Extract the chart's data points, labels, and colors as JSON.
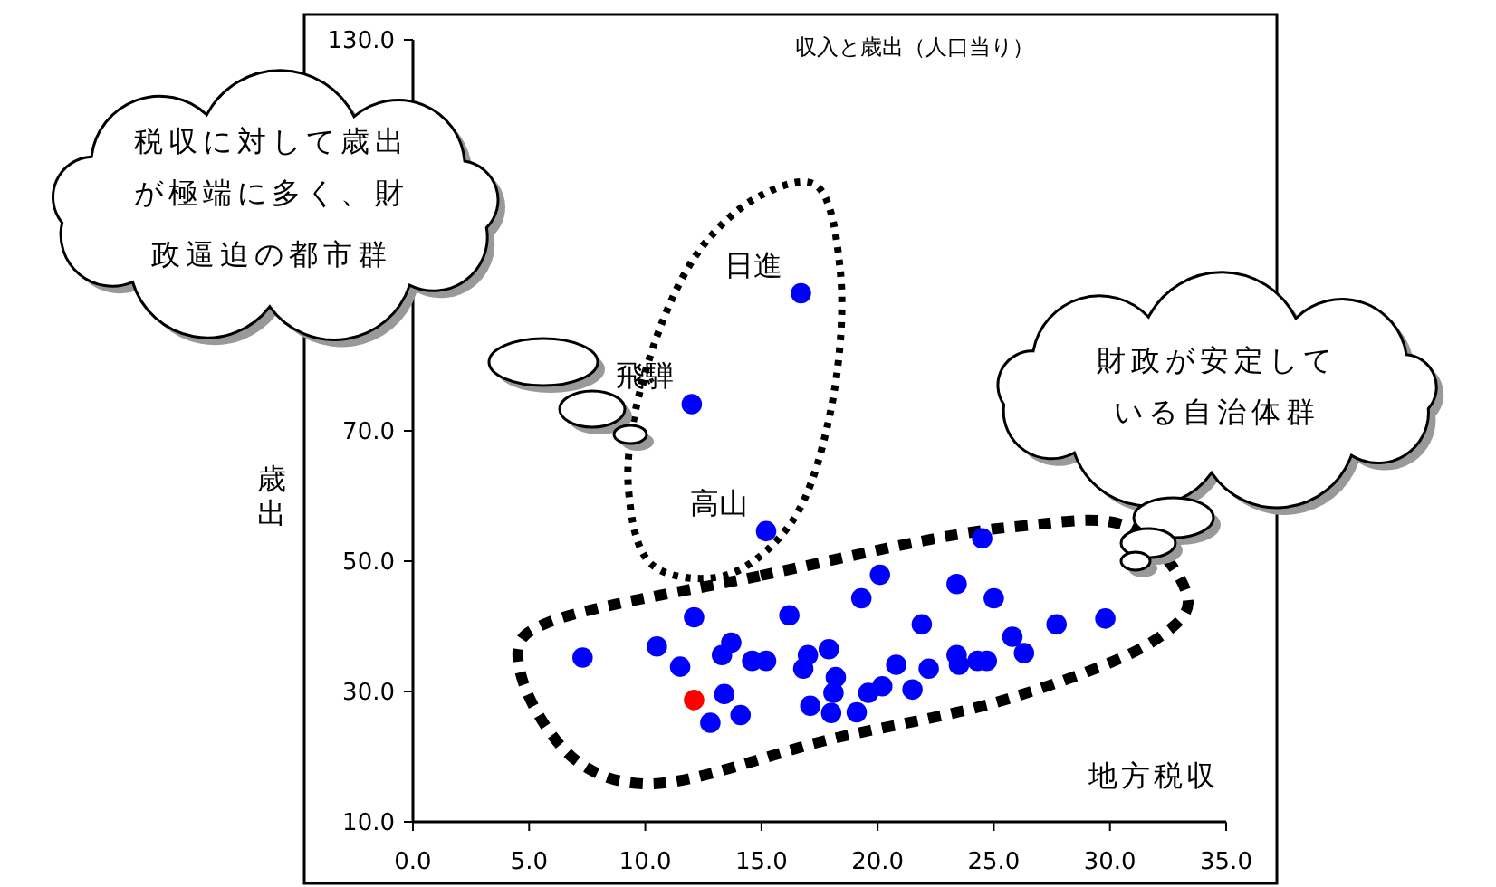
{
  "chart_data": {
    "type": "scatter",
    "title": "収入と歳出（人口当り）",
    "xlabel": "地方税収",
    "ylabel": "歳出",
    "xlim": [
      0,
      35
    ],
    "ylim": [
      10,
      130
    ],
    "xticks": [
      {
        "value": 0,
        "label": "0.0"
      },
      {
        "value": 5,
        "label": "5.0"
      },
      {
        "value": 10,
        "label": "10.0"
      },
      {
        "value": 15,
        "label": "15.0"
      },
      {
        "value": 20,
        "label": "20.0"
      },
      {
        "value": 25,
        "label": "25.0"
      },
      {
        "value": 30,
        "label": "30.0"
      },
      {
        "value": 35,
        "label": "35.0"
      }
    ],
    "yticks": [
      {
        "value": 10,
        "label": "10.0"
      },
      {
        "value": 30,
        "label": "30.0"
      },
      {
        "value": 50,
        "label": "50.0"
      },
      {
        "value": 70,
        "label": "70.0"
      },
      {
        "value": 90,
        "label": null
      },
      {
        "value": 110,
        "label": null
      },
      {
        "value": 130,
        "label": "130.0"
      }
    ],
    "grid": false,
    "marker": "circle",
    "series": [
      {
        "x": [
          16.7,
          12.0,
          15.2,
          24.5,
          20.1,
          19.3,
          23.4,
          25.0,
          16.2,
          12.1,
          21.9,
          27.7,
          29.8,
          25.8,
          26.3,
          7.3,
          10.5,
          11.5,
          13.7,
          13.3,
          14.6,
          15.2,
          17.0,
          17.9,
          16.8,
          18.2,
          18.1,
          17.1,
          18.0,
          19.1,
          19.6,
          20.2,
          20.8,
          21.5,
          22.2,
          23.4,
          23.5,
          24.3,
          24.7,
          13.4,
          14.1,
          12.8,
          12.1
        ],
        "values": [
          91.1,
          74.1,
          54.6,
          53.5,
          47.9,
          44.3,
          46.5,
          44.3,
          41.7,
          41.4,
          40.3,
          40.3,
          41.2,
          38.4,
          35.9,
          35.2,
          36.9,
          33.8,
          37.5,
          35.6,
          34.7,
          34.7,
          35.6,
          36.5,
          33.5,
          32.2,
          29.8,
          27.8,
          26.7,
          26.8,
          29.8,
          30.8,
          34.1,
          30.3,
          33.5,
          35.6,
          34.1,
          34.7,
          34.7,
          29.6,
          26.4,
          25.2,
          28.7
        ],
        "colors": [
          "#0000ff",
          "#0000ff",
          "#0000ff",
          "#0000ff",
          "#0000ff",
          "#0000ff",
          "#0000ff",
          "#0000ff",
          "#0000ff",
          "#0000ff",
          "#0000ff",
          "#0000ff",
          "#0000ff",
          "#0000ff",
          "#0000ff",
          "#0000ff",
          "#0000ff",
          "#0000ff",
          "#0000ff",
          "#0000ff",
          "#0000ff",
          "#0000ff",
          "#0000ff",
          "#0000ff",
          "#0000ff",
          "#0000ff",
          "#0000ff",
          "#0000ff",
          "#0000ff",
          "#0000ff",
          "#0000ff",
          "#0000ff",
          "#0000ff",
          "#0000ff",
          "#0000ff",
          "#0000ff",
          "#0000ff",
          "#0000ff",
          "#0000ff",
          "#0000ff",
          "#0000ff",
          "#0000ff",
          "#ff0000"
        ]
      }
    ],
    "annotations": [
      {
        "text": "日進",
        "x": 16.7,
        "y": 91.1
      },
      {
        "text": "飛騨",
        "x": 12.0,
        "y": 74.1
      },
      {
        "text": "高山",
        "x": 15.2,
        "y": 54.6
      },
      "税収に対して歳出が極端に多く、財政逼迫の都市群",
      "財政が安定している自治体群"
    ]
  }
}
